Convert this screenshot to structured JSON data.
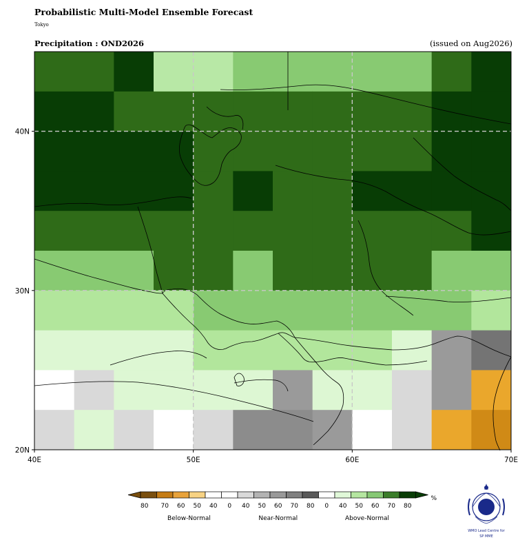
{
  "header": {
    "title": "Probabilistic Multi-Model Ensemble Forecast",
    "subtitle": "Tokyo",
    "variable": "Precipitation : OND2026",
    "issued": "(issued on Aug2026)"
  },
  "axes": {
    "x_ticks": [
      {
        "value": 40,
        "label": "40E"
      },
      {
        "value": 50,
        "label": "50E"
      },
      {
        "value": 60,
        "label": "60E"
      },
      {
        "value": 70,
        "label": "70E"
      }
    ],
    "y_ticks": [
      {
        "value": 40,
        "label": "40N"
      },
      {
        "value": 30,
        "label": "30N"
      },
      {
        "value": 20,
        "label": "20N"
      }
    ],
    "lon_range": [
      40,
      70
    ],
    "lat_range": [
      20,
      45
    ],
    "grid": true,
    "grid_lons": [
      50,
      60
    ],
    "grid_lats": [
      30,
      40
    ]
  },
  "grid": {
    "lon_start": 40,
    "lat_top": 45,
    "cell_deg": 2.5,
    "rows": [
      [
        "G4",
        "G4",
        "G5",
        "G3",
        "G3",
        "G2",
        "G2",
        "G2",
        "G2",
        "G2",
        "G4",
        "G5"
      ],
      [
        "G5",
        "G5",
        "G4",
        "G4",
        "G4",
        "G4",
        "G4",
        "G4",
        "G4",
        "G4",
        "G5",
        "G5"
      ],
      [
        "G5",
        "G5",
        "G5",
        "G5",
        "G4",
        "G4",
        "G4",
        "G4",
        "G4",
        "G4",
        "G5",
        "G5"
      ],
      [
        "G5",
        "G5",
        "G5",
        "G5",
        "G4",
        "G5",
        "G4",
        "G4",
        "G5",
        "G5",
        "G5",
        "G5"
      ],
      [
        "G4",
        "G4",
        "G4",
        "G4",
        "G4",
        "G4",
        "G4",
        "G4",
        "G4",
        "G4",
        "G4",
        "G5"
      ],
      [
        "G2",
        "G2",
        "G2",
        "G4",
        "G4",
        "G2",
        "G4",
        "G4",
        "G4",
        "G4",
        "G2",
        "G2"
      ],
      [
        "G1",
        "G1",
        "G1",
        "G1",
        "G2",
        "G2",
        "G2",
        "G2",
        "G2",
        "G2",
        "G2",
        "G1"
      ],
      [
        "G0",
        "G0",
        "G0",
        "G0",
        "G1",
        "G1",
        "G1",
        "G1",
        "G1",
        "G0",
        "N3",
        "N5"
      ],
      [
        "W",
        "N1",
        "G0",
        "G0",
        "G0",
        "G0",
        "N3",
        "G0",
        "G0",
        "N1",
        "N3",
        "B2"
      ],
      [
        "N1",
        "G0",
        "N1",
        "W",
        "N1",
        "N4",
        "N4",
        "N3",
        "W",
        "N1",
        "B2",
        "B3"
      ]
    ]
  },
  "legend": {
    "unit": "%",
    "colors": [
      "#7a4f0e",
      "#c57c15",
      "#e8a23a",
      "#f7d283",
      "#ffffff",
      "#ffffff",
      "#d9d9d9",
      "#b3b3b3",
      "#999999",
      "#808080",
      "#595959",
      "#ffffff",
      "#e0f8d8",
      "#b5e6a0",
      "#86c874",
      "#3b7d2a",
      "#093d06"
    ],
    "tick_labels": [
      "80",
      "70",
      "60",
      "50",
      "40",
      "0",
      "40",
      "50",
      "60",
      "70",
      "80",
      "0",
      "40",
      "50",
      "60",
      "70",
      "80"
    ],
    "group_labels": [
      "Below-Normal",
      "Near-Normal",
      "Above-Normal"
    ]
  },
  "logo": {
    "text_line1": "WMO Lead Centre for",
    "text_line2": "SP MME"
  },
  "category_colors": {
    "W": "#ffffff",
    "G0": "#ddf7d3",
    "G1": "#b2e69c",
    "G2": "#88ca72",
    "G3": "#b8e8a6",
    "G4": "#2f6b18",
    "G5": "#083d05",
    "N1": "#d9d9d9",
    "N3": "#9a9a9a",
    "N4": "#8c8c8c",
    "N5": "#747474",
    "B2": "#eaa72c",
    "B3": "#d08a16"
  }
}
